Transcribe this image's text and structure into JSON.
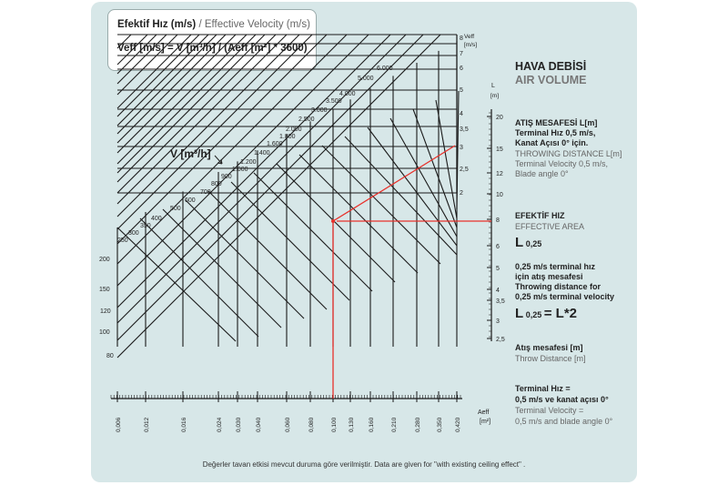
{
  "formula_box": {
    "title_tr": "Efektif Hız (m/s)",
    "title_sep": " / ",
    "title_en": "Effective Velocity (m/s)",
    "equation": "Veff [m/s] = V [m³/h] / (Aeff [m²] * 3600)"
  },
  "vflow_axis": {
    "label": "V [m³/h]",
    "ticks": [
      "80",
      "100",
      "120",
      "150",
      "200",
      "250",
      "300",
      "350",
      "400",
      "500",
      "600",
      "700",
      "800",
      "900",
      "1.000",
      "1.200",
      "1.400",
      "1.600",
      "1.800",
      "2.000",
      "2.500",
      "3.000",
      "3.500",
      "4.000",
      "5.000",
      "6.000"
    ]
  },
  "veff_axis": {
    "title": "Veff",
    "unit": "[m/s]",
    "ticks": [
      "8",
      "7",
      "6",
      "5",
      "4",
      "3,5",
      "3",
      "2,5",
      "2"
    ]
  },
  "aeff_axis": {
    "title": "Aeff",
    "unit": "[m²]",
    "ticks": [
      "0,006",
      "0,012",
      "0,016",
      "0,024",
      "0,030",
      "0,040",
      "0,060",
      "0,080",
      "0,100",
      "0,130",
      "0,160",
      "0,210",
      "0,280",
      "0,350",
      "0,420"
    ]
  },
  "l_axis": {
    "title": "L",
    "unit": "[m]",
    "ticks": [
      "20",
      "15",
      "12",
      "10",
      "8",
      "6",
      "5",
      "4",
      "3,5",
      "3",
      "2,5"
    ]
  },
  "right_panel": {
    "hava_debisi": "HAVA DEBİSİ",
    "air_volume": "AIR VOLUME",
    "atis_title": "ATIŞ MESAFESİ  L[m]",
    "atis_l1": "Terminal Hız 0,5 m/s,",
    "atis_l2": "Kanat Açısı 0° için.",
    "throw_title": "THROWING DISTANCE   L[m]",
    "throw_l1": "Terminal Velocity 0,5 m/s,",
    "throw_l2": "Blade angle 0°",
    "efektif_hiz": "EFEKTİF HIZ",
    "effective_area": "EFFECTIVE AREA",
    "l025_main": "L",
    "l025_sub": "0,25",
    "note_l1": "0,25 m/s terminal hız",
    "note_l2": "için atış mesafesi",
    "note_l3": "Throwing distance for",
    "note_l4": "0,25 m/s terminal velocity",
    "eq_l": "L",
    "eq_sub": "0,25",
    "eq_rhs": "= L*2",
    "atis_mesafesi": "Atış mesafesi [m]",
    "throw_distance": "Throw Distance [m]",
    "term_l1": "Terminal Hız =",
    "term_l2": "0,5 m/s ve kanat açısı 0°",
    "term_l3": "Terminal Velocity =",
    "term_l4": "0,5 m/s and blade angle 0°"
  },
  "footer": "Değerler tavan etkisi mevcut duruma göre verilmiştir.     Data are given for \"with existing ceiling effect\" .",
  "colors": {
    "panel": "#d7e7e8",
    "grid": "#1a1a1a",
    "example_line": "#e8312b"
  }
}
